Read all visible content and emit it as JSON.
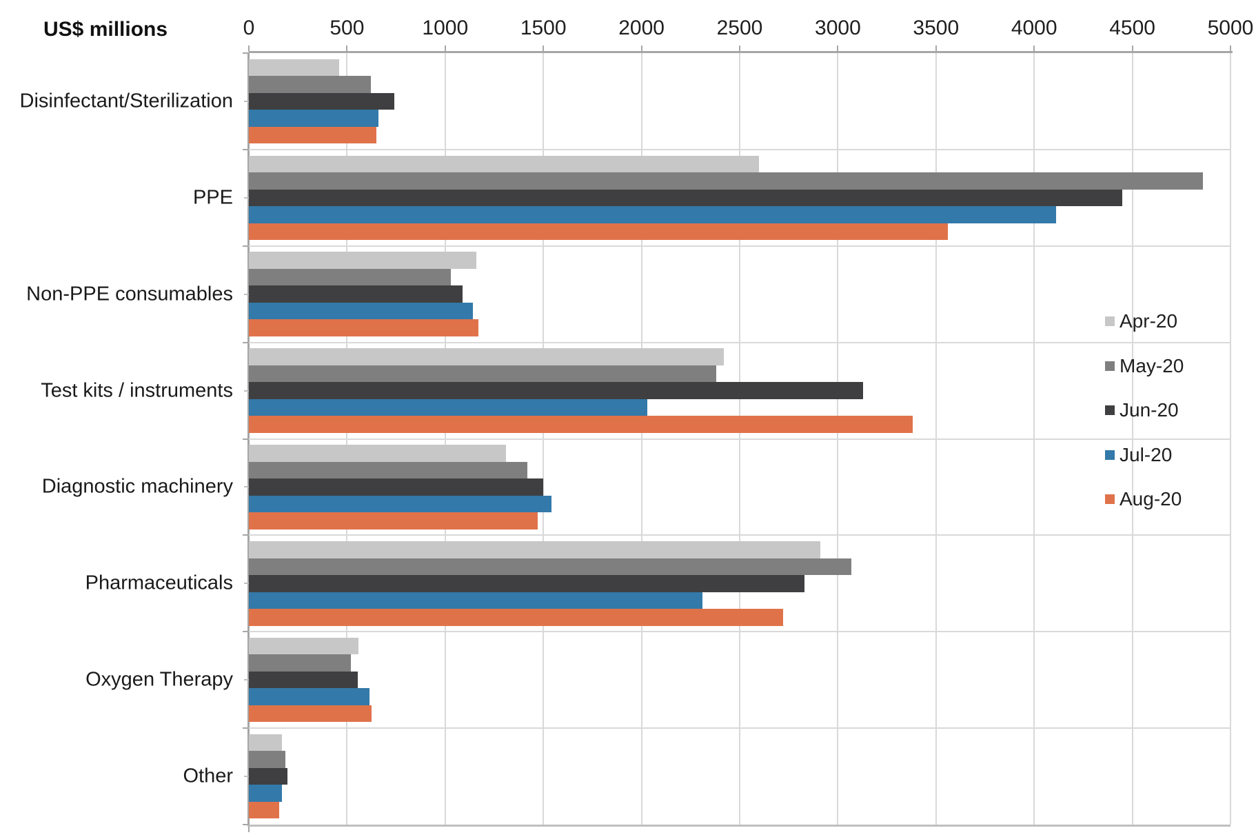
{
  "chart": {
    "axis_title": "US$ millions"
  },
  "chart_data": {
    "type": "bar",
    "orientation": "horizontal",
    "title": "US$ millions",
    "xlabel": "US$ millions",
    "ylabel": "",
    "xlim": [
      0,
      5000
    ],
    "x_ticks": [
      0,
      500,
      1000,
      1500,
      2000,
      2500,
      3000,
      3500,
      4000,
      4500,
      5000
    ],
    "grid": true,
    "legend_position": "inside-right",
    "categories": [
      "Disinfectant/Sterilization",
      "PPE",
      "Non-PPE consumables",
      "Test kits / instruments",
      "Diagnostic machinery",
      "Pharmaceuticals",
      "Oxygen Therapy",
      "Other"
    ],
    "series": [
      {
        "name": "Apr-20",
        "color": "#c7c7c7",
        "values": [
          460,
          2600,
          1160,
          2420,
          1310,
          2910,
          560,
          170
        ]
      },
      {
        "name": "May-20",
        "color": "#7f7f7f",
        "values": [
          620,
          4860,
          1030,
          2380,
          1420,
          3070,
          520,
          185
        ]
      },
      {
        "name": "Jun-20",
        "color": "#3f3f41",
        "values": [
          740,
          4450,
          1090,
          3130,
          1500,
          2830,
          555,
          195
        ]
      },
      {
        "name": "Jul-20",
        "color": "#3379a9",
        "values": [
          660,
          4110,
          1140,
          2030,
          1540,
          2310,
          615,
          170
        ]
      },
      {
        "name": "Aug-20",
        "color": "#e0724a",
        "values": [
          650,
          3560,
          1170,
          3380,
          1470,
          2720,
          625,
          155
        ]
      }
    ]
  },
  "style_colors": {
    "gridline": "#d9d9d9",
    "axis_line": "#a6a6a6",
    "minor_tick": "#bfbfbf"
  }
}
